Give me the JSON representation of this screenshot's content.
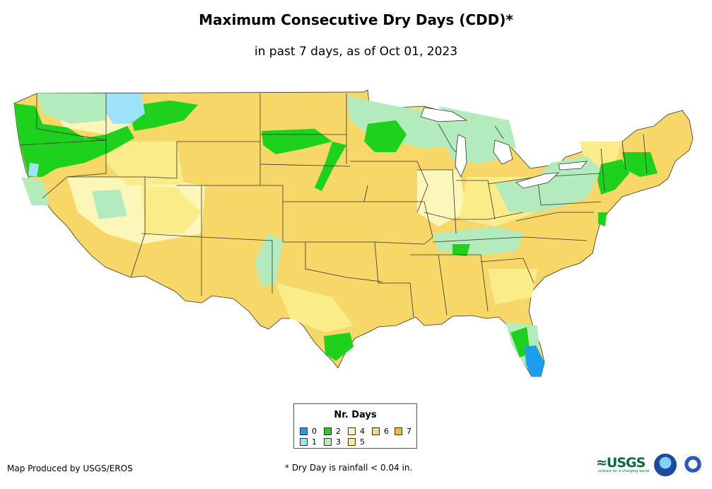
{
  "title": "Maximum Consecutive Dry Days (CDD)*",
  "subtitle": "in past 7 days, as of Oct 01, 2023",
  "legend": {
    "title": "Nr. Days",
    "items": [
      {
        "label": "0",
        "color": "#1a9ff0"
      },
      {
        "label": "1",
        "color": "#9ee2f8"
      },
      {
        "label": "2",
        "color": "#1dd11d"
      },
      {
        "label": "3",
        "color": "#b3ebbd"
      },
      {
        "label": "4",
        "color": "#fcf6b8"
      },
      {
        "label": "5",
        "color": "#fbec8a"
      },
      {
        "label": "6",
        "color": "#f7d767"
      },
      {
        "label": "7",
        "color": "#f5c20b"
      }
    ]
  },
  "footer": {
    "credit": "Map Produced by USGS/EROS",
    "footnote": "* Dry Day is rainfall < 0.04 in."
  },
  "logos": {
    "usgs_text": "≈USGS",
    "usgs_tagline": "science for a changing world"
  }
}
